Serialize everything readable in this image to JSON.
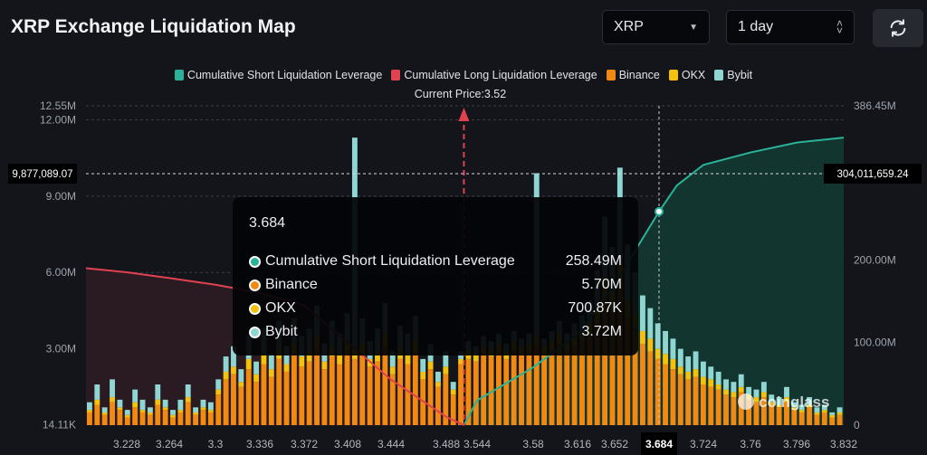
{
  "header": {
    "title": "XRP Exchange Liquidation Map",
    "coin_select": "XRP",
    "range_select": "1 day",
    "refresh_icon": "refresh-icon"
  },
  "colors": {
    "short": "#2bb39a",
    "long": "#e0434f",
    "binance": "#f08a12",
    "okx": "#f4c20d",
    "bybit": "#8fd6d3",
    "background": "#13151b"
  },
  "chart_data": {
    "type": "bar",
    "legend": [
      "Cumulative Short Liquidation Leverage",
      "Cumulative Long Liquidation Leverage",
      "Binance",
      "OKX",
      "Bybit"
    ],
    "legend_position": "top",
    "current_price_label": "Current Price:3.52",
    "current_price": 3.52,
    "x_ticks": [
      "3.228",
      "3.264",
      "3.3",
      "3.336",
      "3.372",
      "3.408",
      "3.444",
      "3.488",
      "3.544",
      "3.58",
      "3.616",
      "3.652",
      "3.684",
      "3.724",
      "3.76",
      "3.796",
      "3.832"
    ],
    "x_range": [
      3.192,
      3.832
    ],
    "y_left_ticks": [
      "14.11K",
      "3.00M",
      "6.00M",
      "9.00M",
      "12.00M",
      "12.55M"
    ],
    "y_left_range": [
      0,
      12.55
    ],
    "y_right_ticks": [
      "0",
      "100.00M",
      "200.00M",
      "386.45M"
    ],
    "y_right_range": [
      0,
      386.45
    ],
    "crosshair": {
      "x_label": "3.684",
      "left_value": "9,877,089.07",
      "right_value": "304,011,659.24"
    },
    "bars_unit": "M",
    "binance": [
      0.5,
      0.8,
      0.4,
      0.9,
      0.6,
      0.3,
      0.7,
      0.5,
      0.4,
      0.8,
      0.6,
      0.3,
      0.5,
      0.9,
      0.4,
      0.6,
      0.5,
      1.2,
      1.8,
      2.0,
      1.5,
      2.2,
      1.7,
      2.4,
      1.9,
      2.6,
      2.1,
      2.8,
      2.3,
      2.5,
      3.0,
      2.2,
      2.7,
      2.4,
      2.9,
      2.6,
      2.8,
      2.3,
      2.5,
      3.1,
      2.0,
      2.6,
      2.4,
      2.9,
      1.8,
      2.2,
      1.5,
      2.0,
      1.2,
      2.4,
      2.6,
      2.5,
      2.8,
      2.7,
      2.9,
      2.6,
      3.0,
      2.8,
      2.9,
      3.1,
      2.8,
      3.0,
      3.2,
      2.9,
      3.1,
      3.3,
      3.5,
      4.0,
      5.0,
      4.5,
      5.7,
      4.2,
      3.8,
      3.2,
      2.9,
      2.6,
      2.4,
      2.2,
      2.0,
      1.8,
      1.9,
      1.6,
      1.5,
      1.4,
      1.2,
      1.1,
      1.3,
      1.0,
      0.9,
      1.1,
      0.8,
      0.7,
      0.9,
      0.6,
      0.5,
      0.7,
      0.4,
      0.5,
      0.3,
      0.4
    ],
    "okx": [
      0.1,
      0.2,
      0.1,
      0.2,
      0.1,
      0.1,
      0.2,
      0.1,
      0.1,
      0.2,
      0.1,
      0.1,
      0.1,
      0.2,
      0.1,
      0.1,
      0.1,
      0.2,
      0.3,
      0.3,
      0.2,
      0.4,
      0.3,
      0.4,
      0.3,
      0.4,
      0.3,
      0.4,
      0.4,
      0.4,
      0.5,
      0.3,
      0.4,
      0.4,
      0.4,
      0.4,
      0.4,
      0.3,
      0.4,
      0.5,
      0.3,
      0.4,
      0.4,
      0.4,
      0.3,
      0.3,
      0.2,
      0.3,
      0.2,
      0.2,
      0.3,
      0.3,
      0.3,
      0.3,
      0.3,
      0.3,
      0.3,
      0.3,
      0.3,
      0.4,
      0.3,
      0.3,
      0.4,
      0.3,
      0.4,
      0.4,
      0.5,
      0.6,
      0.8,
      0.7,
      0.7,
      0.7,
      0.6,
      0.5,
      0.5,
      0.4,
      0.4,
      0.4,
      0.3,
      0.3,
      0.3,
      0.3,
      0.3,
      0.2,
      0.2,
      0.2,
      0.2,
      0.2,
      0.2,
      0.2,
      0.1,
      0.1,
      0.2,
      0.1,
      0.1,
      0.1,
      0.1,
      0.1,
      0.1,
      0.1
    ],
    "bybit": [
      0.3,
      0.6,
      0.2,
      0.7,
      0.3,
      0.2,
      0.5,
      0.4,
      0.2,
      0.6,
      0.3,
      0.2,
      0.4,
      0.5,
      0.2,
      0.3,
      0.3,
      0.4,
      0.6,
      0.8,
      0.5,
      0.9,
      0.5,
      1.0,
      0.6,
      1.1,
      0.7,
      1.0,
      0.8,
      0.9,
      1.2,
      0.7,
      1.0,
      0.8,
      1.1,
      8.3,
      1.0,
      0.7,
      0.9,
      1.2,
      0.6,
      0.9,
      0.8,
      1.0,
      0.5,
      0.7,
      0.4,
      0.6,
      0.3,
      0.3,
      0.4,
      0.3,
      0.4,
      0.3,
      0.4,
      0.3,
      0.4,
      0.3,
      0.4,
      6.4,
      0.3,
      0.4,
      0.5,
      0.4,
      0.5,
      0.6,
      0.9,
      1.5,
      2.4,
      1.8,
      3.72,
      2.2,
      1.6,
      1.4,
      1.2,
      1.0,
      0.9,
      0.8,
      0.7,
      0.6,
      0.7,
      0.6,
      0.5,
      0.5,
      0.4,
      0.4,
      0.5,
      0.3,
      0.3,
      0.4,
      0.3,
      0.3,
      0.4,
      0.2,
      0.2,
      0.3,
      0.2,
      0.2,
      0.1,
      0.2
    ],
    "cumulative_short": {
      "x": [
        3.52,
        3.544,
        3.58,
        3.616,
        3.652,
        3.67,
        3.684,
        3.7,
        3.724,
        3.76,
        3.796,
        3.832
      ],
      "y": [
        0,
        30,
        70,
        110,
        170,
        220,
        258.49,
        290,
        315,
        330,
        342,
        348
      ]
    },
    "cumulative_long": {
      "x": [
        3.192,
        3.228,
        3.264,
        3.3,
        3.336,
        3.372,
        3.408,
        3.444,
        3.488,
        3.52
      ],
      "y": [
        190,
        185,
        178,
        170,
        160,
        145,
        100,
        55,
        10,
        0
      ]
    }
  },
  "tooltip": {
    "title": "3.684",
    "rows": [
      {
        "label": "Cumulative Short Liquidation Leverage",
        "value": "258.49M",
        "color": "#2bb39a"
      },
      {
        "label": "Binance",
        "value": "5.70M",
        "color": "#f08a12"
      },
      {
        "label": "OKX",
        "value": "700.87K",
        "color": "#f4c20d"
      },
      {
        "label": "Bybit",
        "value": "3.72M",
        "color": "#8fd6d3"
      }
    ]
  },
  "watermark": "coinglass"
}
